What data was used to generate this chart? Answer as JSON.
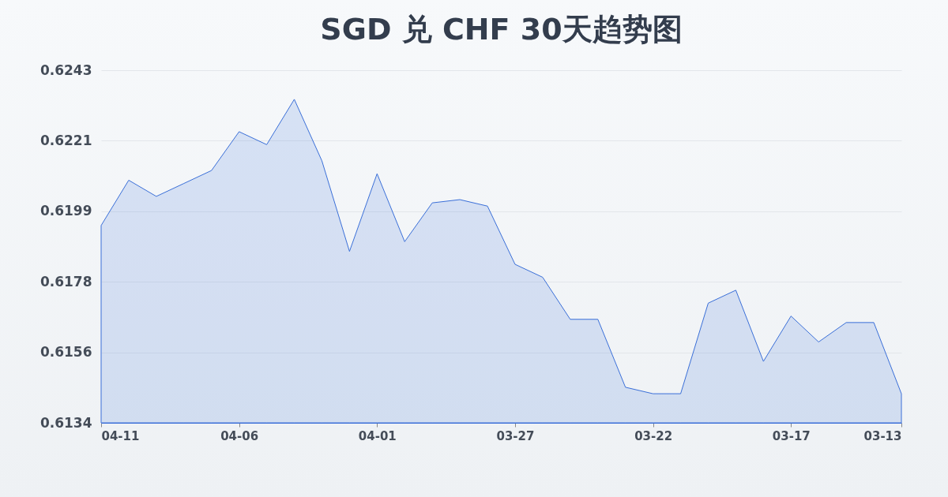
{
  "chart_data": {
    "type": "area",
    "title": "SGD 兑 CHF 30天趋势图",
    "x": [
      "--04-11",
      "--04-10",
      "--04-09",
      "--04-08",
      "--04-07",
      "--04-06",
      "--04-05",
      "--04-04",
      "--04-03",
      "--04-02",
      "--04-01",
      "--03-31",
      "--03-30",
      "--03-29",
      "--03-28",
      "--03-27",
      "--03-26",
      "--03-25",
      "--03-24",
      "--03-23",
      "--03-22",
      "--03-21",
      "--03-20",
      "--03-19",
      "--03-18",
      "--03-17",
      "--03-16",
      "--03-15",
      "--03-14",
      "--03-13"
    ],
    "series": [
      {
        "color": "#3a6fd8",
        "values": [
          0.6195,
          0.6209,
          0.6204,
          0.6208,
          0.6212,
          0.6224,
          0.622,
          0.6234,
          0.6215,
          0.6187,
          0.6211,
          0.619,
          0.6202,
          0.6203,
          0.6201,
          0.6183,
          0.6179,
          0.6166,
          0.6166,
          0.6145,
          0.6143,
          0.6143,
          0.6171,
          0.6175,
          0.6153,
          0.6167,
          0.6159,
          0.6165,
          0.6165,
          0.6143
        ]
      }
    ],
    "xlim": [
      "--04-11",
      "--03-13"
    ],
    "xticks": [
      {
        "value": "--04-11",
        "label": "04-11"
      },
      {
        "value": "--04-06",
        "label": "04-06"
      },
      {
        "value": "--04-01",
        "label": "04-01"
      },
      {
        "value": "--03-27",
        "label": "03-27"
      },
      {
        "value": "--03-22",
        "label": "03-22"
      },
      {
        "value": "--03-17",
        "label": "03-17"
      },
      {
        "value": "--03-13",
        "label": "03-13"
      }
    ],
    "ylim": [
      0.6134,
      0.6243
    ],
    "yticks": [
      {
        "value": 0.6134,
        "label": "0.6134"
      },
      {
        "value": 0.61558,
        "label": "0.6156"
      },
      {
        "value": 0.61776,
        "label": "0.6178"
      },
      {
        "value": 0.61994,
        "label": "0.6199"
      },
      {
        "value": 0.62212,
        "label": "0.6221"
      },
      {
        "value": 0.6243,
        "label": "0.6243"
      }
    ],
    "grid": "y"
  }
}
